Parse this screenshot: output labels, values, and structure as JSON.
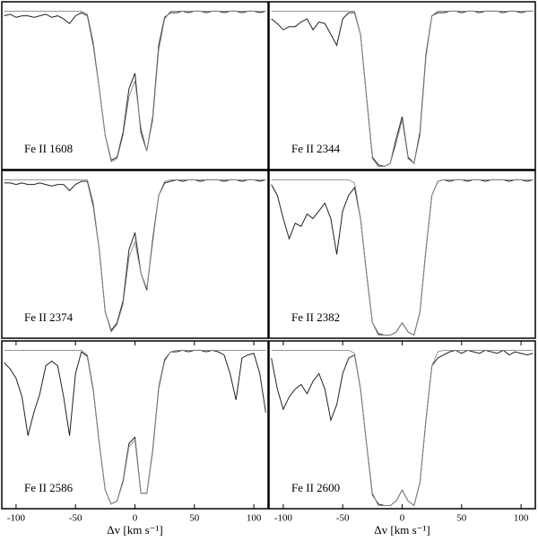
{
  "chart_data": [
    {
      "type": "line",
      "label": "Fe II 1608",
      "x": [
        -110,
        -105,
        -100,
        -95,
        -90,
        -85,
        -80,
        -75,
        -70,
        -65,
        -60,
        -55,
        -50,
        -45,
        -40,
        -35,
        -30,
        -25,
        -20,
        -15,
        -10,
        -5,
        0,
        5,
        10,
        15,
        20,
        25,
        30,
        35,
        40,
        45,
        50,
        55,
        60,
        65,
        70,
        75,
        80,
        85,
        90,
        95,
        100,
        105,
        110
      ],
      "xlim": [
        -112,
        112
      ],
      "ylim": [
        -0.02,
        1.06
      ],
      "series": [
        {
          "color": "#222222",
          "values": [
            0.97,
            0.98,
            0.96,
            0.97,
            0.97,
            0.96,
            0.97,
            0.98,
            0.96,
            0.97,
            0.95,
            0.92,
            0.97,
            0.99,
            0.97,
            0.78,
            0.5,
            0.2,
            0.04,
            0.06,
            0.22,
            0.5,
            0.6,
            0.22,
            0.1,
            0.32,
            0.78,
            0.96,
            0.99,
            0.99,
            1,
            0.99,
            1,
            1,
            0.99,
            1,
            1,
            0.99,
            1,
            1,
            0.99,
            1,
            1,
            0.99,
            1
          ]
        },
        {
          "color": "#888888",
          "values": [
            1,
            1,
            1,
            1,
            1,
            1,
            1,
            1,
            1,
            1,
            1,
            1,
            1,
            1,
            0.98,
            0.8,
            0.5,
            0.2,
            0.03,
            0.05,
            0.2,
            0.45,
            0.55,
            0.25,
            0.1,
            0.3,
            0.75,
            0.95,
            1,
            1,
            1,
            1,
            1,
            1,
            1,
            1,
            1,
            1,
            1,
            1,
            1,
            1,
            1,
            1,
            1
          ]
        }
      ]
    },
    {
      "type": "line",
      "label": "Fe II 2344",
      "x": [
        -110,
        -105,
        -100,
        -95,
        -90,
        -85,
        -80,
        -75,
        -70,
        -65,
        -60,
        -55,
        -50,
        -45,
        -40,
        -35,
        -30,
        -25,
        -20,
        -15,
        -10,
        -5,
        0,
        5,
        10,
        15,
        20,
        25,
        30,
        35,
        40,
        45,
        50,
        55,
        60,
        65,
        70,
        75,
        80,
        85,
        90,
        95,
        100,
        105,
        110
      ],
      "xlim": [
        -112,
        112
      ],
      "ylim": [
        -0.02,
        1.06
      ],
      "series": [
        {
          "color": "#222222",
          "values": [
            0.95,
            0.92,
            0.88,
            0.9,
            0.9,
            0.93,
            0.95,
            0.88,
            0.93,
            0.92,
            0.85,
            0.78,
            0.95,
            0.99,
            0.99,
            0.85,
            0.45,
            0.06,
            0.01,
            0,
            0.02,
            0.18,
            0.32,
            0.06,
            0.02,
            0.22,
            0.72,
            0.97,
            0.99,
            0.99,
            1,
            1,
            0.99,
            1,
            1,
            0.99,
            1,
            1,
            1,
            0.99,
            1,
            1,
            0.99,
            1,
            1
          ]
        },
        {
          "color": "#888888",
          "values": [
            1,
            1,
            1,
            1,
            1,
            1,
            1,
            1,
            1,
            1,
            1,
            1,
            1,
            1,
            1,
            0.85,
            0.45,
            0.05,
            0,
            0,
            0.02,
            0.15,
            0.3,
            0.05,
            0.02,
            0.2,
            0.7,
            0.97,
            1,
            1,
            1,
            1,
            1,
            1,
            1,
            1,
            1,
            1,
            1,
            1,
            1,
            1,
            1,
            1,
            1
          ]
        }
      ]
    },
    {
      "type": "line",
      "label": "Fe II 2374",
      "x": [
        -110,
        -105,
        -100,
        -95,
        -90,
        -85,
        -80,
        -75,
        -70,
        -65,
        -60,
        -55,
        -50,
        -45,
        -40,
        -35,
        -30,
        -25,
        -20,
        -15,
        -10,
        -5,
        0,
        5,
        10,
        15,
        20,
        25,
        30,
        35,
        40,
        45,
        50,
        55,
        60,
        65,
        70,
        75,
        80,
        85,
        90,
        95,
        100,
        105,
        110
      ],
      "xlim": [
        -112,
        112
      ],
      "ylim": [
        -0.02,
        1.06
      ],
      "series": [
        {
          "color": "#222222",
          "values": [
            0.98,
            0.98,
            0.97,
            0.98,
            0.97,
            0.97,
            0.98,
            0.97,
            0.96,
            0.97,
            0.97,
            0.93,
            0.97,
            0.99,
            0.99,
            0.83,
            0.55,
            0.15,
            0.03,
            0.08,
            0.22,
            0.55,
            0.66,
            0.4,
            0.29,
            0.62,
            0.9,
            0.98,
            0.99,
            1,
            0.99,
            1,
            1,
            0.99,
            1,
            1,
            1,
            0.99,
            1,
            1,
            0.99,
            1,
            1,
            0.99,
            1
          ]
        },
        {
          "color": "#888888",
          "values": [
            1,
            1,
            1,
            1,
            1,
            1,
            1,
            1,
            1,
            1,
            1,
            1,
            1,
            1,
            1,
            0.85,
            0.55,
            0.15,
            0.02,
            0.07,
            0.2,
            0.5,
            0.6,
            0.4,
            0.3,
            0.6,
            0.9,
            0.99,
            1,
            1,
            1,
            1,
            1,
            1,
            1,
            1,
            1,
            1,
            1,
            1,
            1,
            1,
            1,
            1,
            1
          ]
        }
      ]
    },
    {
      "type": "line",
      "label": "Fe II 2382",
      "x": [
        -110,
        -105,
        -100,
        -95,
        -90,
        -85,
        -80,
        -75,
        -70,
        -65,
        -60,
        -55,
        -50,
        -45,
        -40,
        -35,
        -30,
        -25,
        -20,
        -15,
        -10,
        -5,
        0,
        5,
        10,
        15,
        20,
        25,
        30,
        35,
        40,
        45,
        50,
        55,
        60,
        65,
        70,
        75,
        80,
        85,
        90,
        95,
        100,
        105,
        110
      ],
      "xlim": [
        -112,
        112
      ],
      "ylim": [
        -0.02,
        1.06
      ],
      "series": [
        {
          "color": "#222222",
          "values": [
            0.97,
            0.9,
            0.75,
            0.62,
            0.72,
            0.7,
            0.78,
            0.75,
            0.8,
            0.85,
            0.75,
            0.52,
            0.8,
            0.9,
            0.95,
            0.75,
            0.4,
            0.08,
            0.01,
            0,
            0,
            0.02,
            0.08,
            0.02,
            0,
            0.15,
            0.55,
            0.9,
            0.99,
            1,
            0.99,
            1,
            1,
            0.99,
            1,
            1,
            0.99,
            1,
            1,
            1,
            0.99,
            1,
            1,
            0.99,
            1
          ]
        },
        {
          "color": "#888888",
          "values": [
            1,
            1,
            1,
            1,
            1,
            1,
            1,
            1,
            1,
            1,
            1,
            1,
            1,
            1,
            0.98,
            0.75,
            0.4,
            0.08,
            0,
            0,
            0,
            0.02,
            0.08,
            0.02,
            0,
            0.15,
            0.55,
            0.9,
            0.99,
            1,
            1,
            1,
            1,
            1,
            1,
            1,
            1,
            1,
            1,
            1,
            1,
            1,
            1,
            1,
            1
          ]
        }
      ]
    },
    {
      "type": "line",
      "label": "Fe II 2586",
      "xlabel": "Δv [km s⁻¹]",
      "x": [
        -110,
        -105,
        -100,
        -95,
        -90,
        -85,
        -80,
        -75,
        -70,
        -65,
        -60,
        -55,
        -50,
        -45,
        -40,
        -35,
        -30,
        -25,
        -20,
        -15,
        -10,
        -5,
        0,
        5,
        10,
        15,
        20,
        25,
        30,
        35,
        40,
        45,
        50,
        55,
        60,
        65,
        70,
        75,
        80,
        85,
        90,
        95,
        100,
        105,
        110
      ],
      "xlim": [
        -112,
        112
      ],
      "ylim": [
        -0.02,
        1.06
      ],
      "xticks": [
        -100,
        -50,
        0,
        50,
        100
      ],
      "series": [
        {
          "color": "#222222",
          "values": [
            0.92,
            0.88,
            0.82,
            0.7,
            0.45,
            0.6,
            0.72,
            0.9,
            0.93,
            0.9,
            0.7,
            0.45,
            0.85,
            0.99,
            0.96,
            0.74,
            0.4,
            0.1,
            0.01,
            0.03,
            0.16,
            0.4,
            0.44,
            0.08,
            0.08,
            0.36,
            0.76,
            0.94,
            0.99,
            0.99,
            1,
            0.99,
            1,
            1,
            0.99,
            1,
            0.99,
            0.97,
            0.85,
            0.68,
            0.95,
            0.97,
            0.98,
            0.85,
            0.6
          ]
        },
        {
          "color": "#888888",
          "values": [
            1,
            1,
            1,
            1,
            1,
            1,
            1,
            1,
            1,
            1,
            1,
            1,
            1,
            1,
            0.97,
            0.75,
            0.4,
            0.1,
            0.01,
            0.03,
            0.15,
            0.38,
            0.42,
            0.08,
            0.08,
            0.35,
            0.75,
            0.93,
            0.99,
            1,
            1,
            1,
            1,
            1,
            1,
            1,
            1,
            1,
            1,
            1,
            1,
            1,
            1,
            1,
            1
          ]
        }
      ]
    },
    {
      "type": "line",
      "label": "Fe II 2600",
      "xlabel": "Δv [km s⁻¹]",
      "x": [
        -110,
        -105,
        -100,
        -95,
        -90,
        -85,
        -80,
        -75,
        -70,
        -65,
        -60,
        -55,
        -50,
        -45,
        -40,
        -35,
        -30,
        -25,
        -20,
        -15,
        -10,
        -5,
        0,
        5,
        10,
        15,
        20,
        25,
        30,
        35,
        40,
        45,
        50,
        55,
        60,
        65,
        70,
        75,
        80,
        85,
        90,
        95,
        100,
        105,
        110
      ],
      "xlim": [
        -112,
        112
      ],
      "ylim": [
        -0.02,
        1.06
      ],
      "xticks": [
        -100,
        -50,
        0,
        50,
        100
      ],
      "series": [
        {
          "color": "#222222",
          "values": [
            0.95,
            0.75,
            0.62,
            0.7,
            0.75,
            0.78,
            0.72,
            0.8,
            0.85,
            0.75,
            0.55,
            0.65,
            0.85,
            0.95,
            0.97,
            0.75,
            0.4,
            0.07,
            0.01,
            0,
            0,
            0.03,
            0.1,
            0.03,
            0,
            0.15,
            0.55,
            0.9,
            0.95,
            0.97,
            0.99,
            1,
            0.98,
            1,
            0.99,
            0.98,
            1,
            0.99,
            0.98,
            1,
            0.97,
            0.99,
            0.98,
            0.97,
            0.98
          ]
        },
        {
          "color": "#888888",
          "values": [
            1,
            1,
            1,
            1,
            1,
            1,
            1,
            1,
            1,
            1,
            1,
            1,
            1,
            1,
            0.98,
            0.75,
            0.4,
            0.08,
            0,
            0,
            0,
            0.03,
            0.1,
            0.03,
            0,
            0.15,
            0.55,
            0.9,
            0.99,
            1,
            1,
            1,
            1,
            1,
            1,
            1,
            1,
            1,
            1,
            1,
            1,
            1,
            1,
            1,
            1
          ]
        }
      ]
    }
  ]
}
